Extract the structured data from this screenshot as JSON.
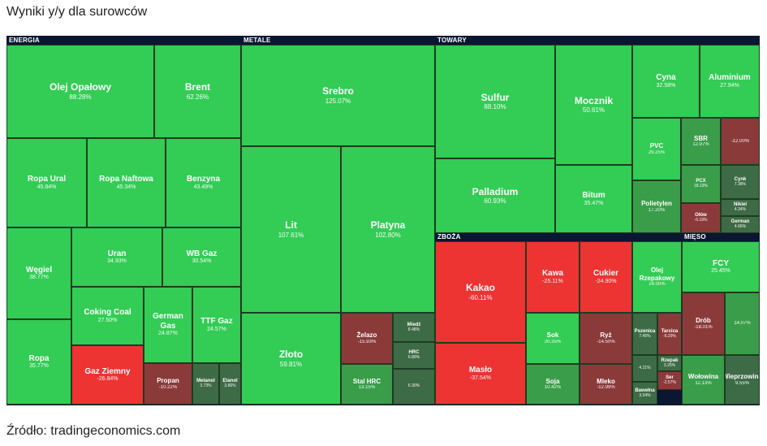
{
  "title": "Wyniki y/y dla surowców",
  "source": "Źródło: tradingeconomics.com",
  "colors": {
    "strong_up": "#33cc55",
    "mid_up": "#3a9d4a",
    "weak_up": "#3d6b45",
    "weak_down": "#8b3a3a",
    "strong_down": "#ee3333"
  },
  "chart_data": {
    "type": "treemap",
    "sectors": [
      {
        "name": "ENERGIA",
        "items": [
          {
            "name": "Olej Opałowy",
            "value": "88.28%"
          },
          {
            "name": "Brent",
            "value": "62.26%"
          },
          {
            "name": "Ropa Ural",
            "value": "45.84%"
          },
          {
            "name": "Ropa Naftowa",
            "value": "45.34%"
          },
          {
            "name": "Benzyna",
            "value": "43.49%"
          },
          {
            "name": "Węgiel",
            "value": "38.77%"
          },
          {
            "name": "Uran",
            "value": "34.93%"
          },
          {
            "name": "WB Gaz",
            "value": "30.54%"
          },
          {
            "name": "Coking Coal",
            "value": "27.50%"
          },
          {
            "name": "German Gas",
            "value": "24.87%"
          },
          {
            "name": "TTF Gaz",
            "value": "24.57%"
          },
          {
            "name": "Ropa",
            "value": "35.77%"
          },
          {
            "name": "Gaz Ziemny",
            "value": "-26.84%"
          },
          {
            "name": "Propan",
            "value": "-10.22%"
          },
          {
            "name": "Metanol",
            "value": "3.73%"
          },
          {
            "name": "Etanol",
            "value": "3.86%"
          }
        ]
      },
      {
        "name": "METALE",
        "items": [
          {
            "name": "Srebro",
            "value": "125.07%"
          },
          {
            "name": "Lit",
            "value": "107.61%"
          },
          {
            "name": "Platyna",
            "value": "102.80%"
          },
          {
            "name": "Złoto",
            "value": "59.81%"
          },
          {
            "name": "Żelazo",
            "value": "-15.93%"
          },
          {
            "name": "Miedź",
            "value": "8.48%"
          },
          {
            "name": "HRC",
            "value": "6.89%"
          },
          {
            "name": "Stal HRC",
            "value": "13.15%"
          },
          {
            "name": "",
            "value": "6.30%"
          }
        ]
      },
      {
        "name": "TOWARY",
        "items": [
          {
            "name": "Sulfur",
            "value": "88.10%"
          },
          {
            "name": "Mocznik",
            "value": "50.61%"
          },
          {
            "name": "Palladium",
            "value": "60.93%"
          },
          {
            "name": "Bitum",
            "value": "35.47%"
          },
          {
            "name": "Cyna",
            "value": "32.58%"
          },
          {
            "name": "Aluminium",
            "value": "27.94%"
          },
          {
            "name": "PVC",
            "value": "29.25%"
          },
          {
            "name": "SBR",
            "value": "12.97%"
          },
          {
            "name": "",
            "value": "-12.00%"
          },
          {
            "name": "Polietylen",
            "value": "17.20%"
          },
          {
            "name": "PCX",
            "value": "18.19%"
          },
          {
            "name": "Cynk",
            "value": "7.38%"
          },
          {
            "name": "Ołów",
            "value": "-6.18%"
          },
          {
            "name": "Nikiel",
            "value": "4.34%"
          },
          {
            "name": "German",
            "value": "4.66%"
          }
        ]
      },
      {
        "name": "ZBOŻA",
        "items": [
          {
            "name": "Kakao",
            "value": "-60.11%"
          },
          {
            "name": "Masło",
            "value": "-37.54%"
          },
          {
            "name": "Kawa",
            "value": "-25.11%"
          },
          {
            "name": "Cukier",
            "value": "-24.90%"
          },
          {
            "name": "Sok",
            "value": "20.35%"
          },
          {
            "name": "Ryż",
            "value": "-14.50%"
          },
          {
            "name": "Soja",
            "value": "10.42%"
          },
          {
            "name": "Mleko",
            "value": "-12.99%"
          },
          {
            "name": "Pszenica",
            "value": "7.45%"
          },
          {
            "name": "Tarcica",
            "value": "-6.29%"
          },
          {
            "name": "",
            "value": "4.21%"
          },
          {
            "name": "Rzepak",
            "value": "3.25%"
          },
          {
            "name": "Ser",
            "value": "-2.57%"
          },
          {
            "name": "Bawełna",
            "value": "3.54%"
          }
        ]
      },
      {
        "name": "MIĘSO",
        "items": [
          {
            "name": "Olej Rzepakowy",
            "value": "24.00%"
          },
          {
            "name": "FCY",
            "value": "25.45%"
          },
          {
            "name": "Drób",
            "value": "-18.01%"
          },
          {
            "name": "",
            "value": "14.07%"
          },
          {
            "name": "Wołowina",
            "value": "12.13%"
          },
          {
            "name": "Wieprzowina",
            "value": "9.55%"
          }
        ]
      }
    ]
  }
}
